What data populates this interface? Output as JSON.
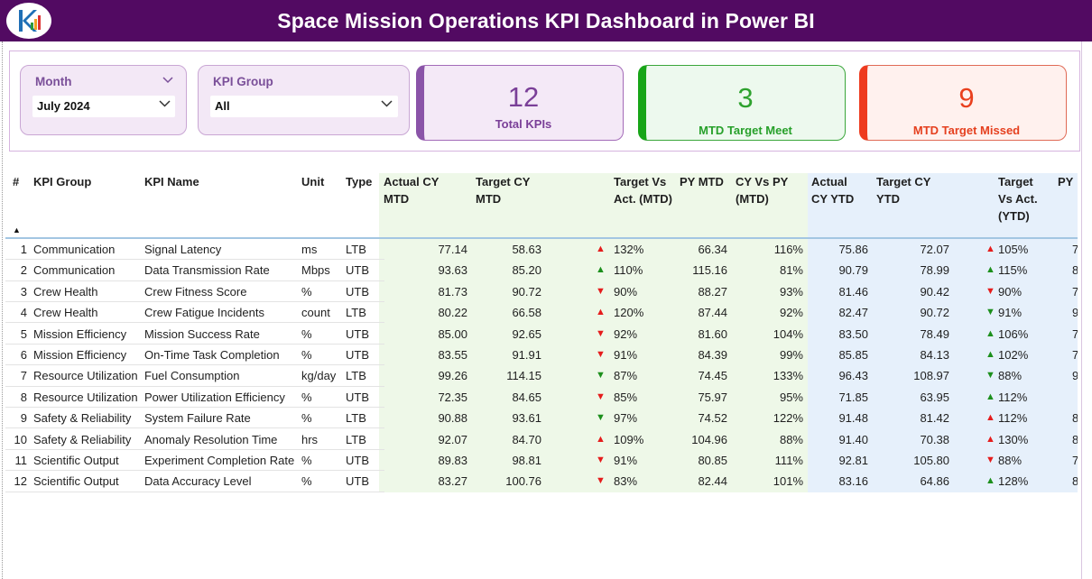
{
  "title": "Space Mission Operations KPI Dashboard in Power BI",
  "slicers": {
    "month": {
      "label": "Month",
      "value": "July 2024"
    },
    "kpi_group": {
      "label": "KPI Group",
      "value": "All"
    }
  },
  "cards": {
    "total": {
      "value": "12",
      "caption": "Total KPIs"
    },
    "meet": {
      "value": "3",
      "caption": "MTD Target Meet"
    },
    "missed": {
      "value": "9",
      "caption": "MTD Target Missed"
    }
  },
  "colors": {
    "header_purple": "#520a62",
    "mtd_band": "#eef8e8",
    "ytd_band": "#e6f0fb",
    "up_red": "#e51c1c",
    "green": "#1c8f1c"
  },
  "table": {
    "headers": {
      "num": "#",
      "group": "KPI Group",
      "name": "KPI Name",
      "unit": "Unit",
      "type": "Type",
      "act_mtd": "Actual CY MTD",
      "tgt_mtd": "Target CY MTD",
      "tva_mtd": "Target Vs Act. (MTD)",
      "py_mtd": "PY MTD",
      "cyvpy_mtd": "CY Vs PY (MTD)",
      "act_ytd": "Actual CY YTD",
      "tgt_ytd": "Target CY YTD",
      "tva_ytd": "Target Vs Act. (YTD)",
      "py_ytd": "PY"
    },
    "rows": [
      {
        "num": "1",
        "group": "Communication",
        "name": "Signal Latency",
        "unit": "ms",
        "type": "LTB",
        "act_mtd": "77.14",
        "tgt_mtd": "58.63",
        "mtd_icon": "▲",
        "mtd_icon_class": "up-red",
        "tva_mtd": "132%",
        "py_mtd": "66.34",
        "cyvpy_mtd": "116%",
        "act_ytd": "75.86",
        "tgt_ytd": "72.07",
        "ytd_icon": "▲",
        "ytd_icon_class": "up-red",
        "tva_ytd": "105%",
        "py_ytd": "7"
      },
      {
        "num": "2",
        "group": "Communication",
        "name": "Data Transmission Rate",
        "unit": "Mbps",
        "type": "UTB",
        "act_mtd": "93.63",
        "tgt_mtd": "85.20",
        "mtd_icon": "▲",
        "mtd_icon_class": "up-green",
        "tva_mtd": "110%",
        "py_mtd": "115.16",
        "cyvpy_mtd": "81%",
        "act_ytd": "90.79",
        "tgt_ytd": "78.99",
        "ytd_icon": "▲",
        "ytd_icon_class": "up-green",
        "tva_ytd": "115%",
        "py_ytd": "8"
      },
      {
        "num": "3",
        "group": "Crew Health",
        "name": "Crew Fitness Score",
        "unit": "%",
        "type": "UTB",
        "act_mtd": "81.73",
        "tgt_mtd": "90.72",
        "mtd_icon": "▼",
        "mtd_icon_class": "down-red",
        "tva_mtd": "90%",
        "py_mtd": "88.27",
        "cyvpy_mtd": "93%",
        "act_ytd": "81.46",
        "tgt_ytd": "90.42",
        "ytd_icon": "▼",
        "ytd_icon_class": "down-red",
        "tva_ytd": "90%",
        "py_ytd": "7"
      },
      {
        "num": "4",
        "group": "Crew Health",
        "name": "Crew Fatigue Incidents",
        "unit": "count",
        "type": "LTB",
        "act_mtd": "80.22",
        "tgt_mtd": "66.58",
        "mtd_icon": "▲",
        "mtd_icon_class": "up-red",
        "tva_mtd": "120%",
        "py_mtd": "87.44",
        "cyvpy_mtd": "92%",
        "act_ytd": "82.47",
        "tgt_ytd": "90.72",
        "ytd_icon": "▼",
        "ytd_icon_class": "down-green",
        "tva_ytd": "91%",
        "py_ytd": "9"
      },
      {
        "num": "5",
        "group": "Mission Efficiency",
        "name": "Mission Success Rate",
        "unit": "%",
        "type": "UTB",
        "act_mtd": "85.00",
        "tgt_mtd": "92.65",
        "mtd_icon": "▼",
        "mtd_icon_class": "down-red",
        "tva_mtd": "92%",
        "py_mtd": "81.60",
        "cyvpy_mtd": "104%",
        "act_ytd": "83.50",
        "tgt_ytd": "78.49",
        "ytd_icon": "▲",
        "ytd_icon_class": "up-green",
        "tva_ytd": "106%",
        "py_ytd": "7"
      },
      {
        "num": "6",
        "group": "Mission Efficiency",
        "name": "On-Time Task Completion",
        "unit": "%",
        "type": "UTB",
        "act_mtd": "83.55",
        "tgt_mtd": "91.91",
        "mtd_icon": "▼",
        "mtd_icon_class": "down-red",
        "tva_mtd": "91%",
        "py_mtd": "84.39",
        "cyvpy_mtd": "99%",
        "act_ytd": "85.85",
        "tgt_ytd": "84.13",
        "ytd_icon": "▲",
        "ytd_icon_class": "up-green",
        "tva_ytd": "102%",
        "py_ytd": "7"
      },
      {
        "num": "7",
        "group": "Resource Utilization",
        "name": "Fuel Consumption",
        "unit": "kg/day",
        "type": "LTB",
        "act_mtd": "99.26",
        "tgt_mtd": "114.15",
        "mtd_icon": "▼",
        "mtd_icon_class": "down-green",
        "tva_mtd": "87%",
        "py_mtd": "74.45",
        "cyvpy_mtd": "133%",
        "act_ytd": "96.43",
        "tgt_ytd": "108.97",
        "ytd_icon": "▼",
        "ytd_icon_class": "down-green",
        "tva_ytd": "88%",
        "py_ytd": "9"
      },
      {
        "num": "8",
        "group": "Resource Utilization",
        "name": "Power Utilization Efficiency",
        "unit": "%",
        "type": "UTB",
        "act_mtd": "72.35",
        "tgt_mtd": "84.65",
        "mtd_icon": "▼",
        "mtd_icon_class": "down-red",
        "tva_mtd": "85%",
        "py_mtd": "75.97",
        "cyvpy_mtd": "95%",
        "act_ytd": "71.85",
        "tgt_ytd": "63.95",
        "ytd_icon": "▲",
        "ytd_icon_class": "up-green",
        "tva_ytd": "112%",
        "py_ytd": ""
      },
      {
        "num": "9",
        "group": "Safety & Reliability",
        "name": "System Failure Rate",
        "unit": "%",
        "type": "LTB",
        "act_mtd": "90.88",
        "tgt_mtd": "93.61",
        "mtd_icon": "▼",
        "mtd_icon_class": "down-green",
        "tva_mtd": "97%",
        "py_mtd": "74.52",
        "cyvpy_mtd": "122%",
        "act_ytd": "91.48",
        "tgt_ytd": "81.42",
        "ytd_icon": "▲",
        "ytd_icon_class": "up-red",
        "tva_ytd": "112%",
        "py_ytd": "8"
      },
      {
        "num": "10",
        "group": "Safety & Reliability",
        "name": "Anomaly Resolution Time",
        "unit": "hrs",
        "type": "LTB",
        "act_mtd": "92.07",
        "tgt_mtd": "84.70",
        "mtd_icon": "▲",
        "mtd_icon_class": "up-red",
        "tva_mtd": "109%",
        "py_mtd": "104.96",
        "cyvpy_mtd": "88%",
        "act_ytd": "91.40",
        "tgt_ytd": "70.38",
        "ytd_icon": "▲",
        "ytd_icon_class": "up-red",
        "tva_ytd": "130%",
        "py_ytd": "8"
      },
      {
        "num": "11",
        "group": "Scientific Output",
        "name": "Experiment Completion Rate",
        "unit": "%",
        "type": "UTB",
        "act_mtd": "89.83",
        "tgt_mtd": "98.81",
        "mtd_icon": "▼",
        "mtd_icon_class": "down-red",
        "tva_mtd": "91%",
        "py_mtd": "80.85",
        "cyvpy_mtd": "111%",
        "act_ytd": "92.81",
        "tgt_ytd": "105.80",
        "ytd_icon": "▼",
        "ytd_icon_class": "down-red",
        "tva_ytd": "88%",
        "py_ytd": "7"
      },
      {
        "num": "12",
        "group": "Scientific Output",
        "name": "Data Accuracy Level",
        "unit": "%",
        "type": "UTB",
        "act_mtd": "83.27",
        "tgt_mtd": "100.76",
        "mtd_icon": "▼",
        "mtd_icon_class": "down-red",
        "tva_mtd": "83%",
        "py_mtd": "82.44",
        "cyvpy_mtd": "101%",
        "act_ytd": "83.16",
        "tgt_ytd": "64.86",
        "ytd_icon": "▲",
        "ytd_icon_class": "up-green",
        "tva_ytd": "128%",
        "py_ytd": "8"
      }
    ]
  }
}
